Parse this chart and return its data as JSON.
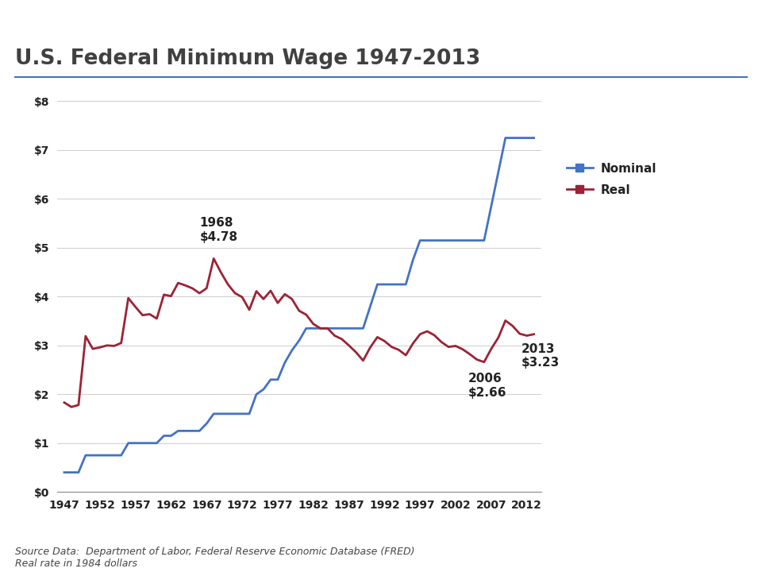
{
  "title": "U.S. Federal Minimum Wage 1947-2013",
  "source_text": "Source Data:  Department of Labor, Federal Reserve Economic Database (FRED)\nReal rate in 1984 dollars",
  "nominal": [
    [
      1947,
      0.4
    ],
    [
      1948,
      0.4
    ],
    [
      1949,
      0.4
    ],
    [
      1950,
      0.75
    ],
    [
      1951,
      0.75
    ],
    [
      1952,
      0.75
    ],
    [
      1953,
      0.75
    ],
    [
      1954,
      0.75
    ],
    [
      1955,
      0.75
    ],
    [
      1956,
      1.0
    ],
    [
      1957,
      1.0
    ],
    [
      1958,
      1.0
    ],
    [
      1959,
      1.0
    ],
    [
      1960,
      1.0
    ],
    [
      1961,
      1.15
    ],
    [
      1962,
      1.15
    ],
    [
      1963,
      1.25
    ],
    [
      1964,
      1.25
    ],
    [
      1965,
      1.25
    ],
    [
      1966,
      1.25
    ],
    [
      1967,
      1.4
    ],
    [
      1968,
      1.6
    ],
    [
      1969,
      1.6
    ],
    [
      1970,
      1.6
    ],
    [
      1971,
      1.6
    ],
    [
      1972,
      1.6
    ],
    [
      1973,
      1.6
    ],
    [
      1974,
      2.0
    ],
    [
      1975,
      2.1
    ],
    [
      1976,
      2.3
    ],
    [
      1977,
      2.3
    ],
    [
      1978,
      2.65
    ],
    [
      1979,
      2.9
    ],
    [
      1980,
      3.1
    ],
    [
      1981,
      3.35
    ],
    [
      1982,
      3.35
    ],
    [
      1983,
      3.35
    ],
    [
      1984,
      3.35
    ],
    [
      1985,
      3.35
    ],
    [
      1986,
      3.35
    ],
    [
      1987,
      3.35
    ],
    [
      1988,
      3.35
    ],
    [
      1989,
      3.35
    ],
    [
      1990,
      3.8
    ],
    [
      1991,
      4.25
    ],
    [
      1992,
      4.25
    ],
    [
      1993,
      4.25
    ],
    [
      1994,
      4.25
    ],
    [
      1995,
      4.25
    ],
    [
      1996,
      4.75
    ],
    [
      1997,
      5.15
    ],
    [
      1998,
      5.15
    ],
    [
      1999,
      5.15
    ],
    [
      2000,
      5.15
    ],
    [
      2001,
      5.15
    ],
    [
      2002,
      5.15
    ],
    [
      2003,
      5.15
    ],
    [
      2004,
      5.15
    ],
    [
      2005,
      5.15
    ],
    [
      2006,
      5.15
    ],
    [
      2007,
      5.85
    ],
    [
      2008,
      6.55
    ],
    [
      2009,
      7.25
    ],
    [
      2010,
      7.25
    ],
    [
      2011,
      7.25
    ],
    [
      2012,
      7.25
    ],
    [
      2013,
      7.25
    ]
  ],
  "real": [
    [
      1947,
      1.83
    ],
    [
      1948,
      1.74
    ],
    [
      1949,
      1.78
    ],
    [
      1950,
      3.19
    ],
    [
      1951,
      2.93
    ],
    [
      1952,
      2.96
    ],
    [
      1953,
      3.0
    ],
    [
      1954,
      2.99
    ],
    [
      1955,
      3.05
    ],
    [
      1956,
      3.97
    ],
    [
      1957,
      3.79
    ],
    [
      1958,
      3.62
    ],
    [
      1959,
      3.64
    ],
    [
      1960,
      3.55
    ],
    [
      1961,
      4.04
    ],
    [
      1962,
      4.01
    ],
    [
      1963,
      4.28
    ],
    [
      1964,
      4.23
    ],
    [
      1965,
      4.17
    ],
    [
      1966,
      4.07
    ],
    [
      1967,
      4.17
    ],
    [
      1968,
      4.78
    ],
    [
      1969,
      4.5
    ],
    [
      1970,
      4.25
    ],
    [
      1971,
      4.07
    ],
    [
      1972,
      3.99
    ],
    [
      1973,
      3.73
    ],
    [
      1974,
      4.11
    ],
    [
      1975,
      3.95
    ],
    [
      1976,
      4.12
    ],
    [
      1977,
      3.87
    ],
    [
      1978,
      4.05
    ],
    [
      1979,
      3.95
    ],
    [
      1980,
      3.71
    ],
    [
      1981,
      3.63
    ],
    [
      1982,
      3.44
    ],
    [
      1983,
      3.35
    ],
    [
      1984,
      3.35
    ],
    [
      1985,
      3.2
    ],
    [
      1986,
      3.13
    ],
    [
      1987,
      3.0
    ],
    [
      1988,
      2.86
    ],
    [
      1989,
      2.69
    ],
    [
      1990,
      2.96
    ],
    [
      1991,
      3.17
    ],
    [
      1992,
      3.09
    ],
    [
      1993,
      2.97
    ],
    [
      1994,
      2.91
    ],
    [
      1995,
      2.8
    ],
    [
      1996,
      3.04
    ],
    [
      1997,
      3.23
    ],
    [
      1998,
      3.29
    ],
    [
      1999,
      3.21
    ],
    [
      2000,
      3.07
    ],
    [
      2001,
      2.97
    ],
    [
      2002,
      2.99
    ],
    [
      2003,
      2.92
    ],
    [
      2004,
      2.82
    ],
    [
      2005,
      2.71
    ],
    [
      2006,
      2.66
    ],
    [
      2007,
      2.93
    ],
    [
      2008,
      3.16
    ],
    [
      2009,
      3.51
    ],
    [
      2010,
      3.4
    ],
    [
      2011,
      3.24
    ],
    [
      2012,
      3.2
    ],
    [
      2013,
      3.23
    ]
  ],
  "nominal_color": "#4472C4",
  "real_color": "#9B2335",
  "title_color": "#404040",
  "title_line_color": "#4472C4",
  "xlim": [
    1946,
    2014
  ],
  "ylim": [
    0,
    8.2
  ],
  "xticks": [
    1947,
    1952,
    1957,
    1962,
    1967,
    1972,
    1977,
    1982,
    1987,
    1992,
    1997,
    2002,
    2007,
    2012
  ],
  "yticks": [
    0,
    1,
    2,
    3,
    4,
    5,
    6,
    7,
    8
  ],
  "ytick_labels": [
    "$0",
    "$1",
    "$2",
    "$3",
    "$4",
    "$5",
    "$6",
    "$7",
    "$8"
  ]
}
